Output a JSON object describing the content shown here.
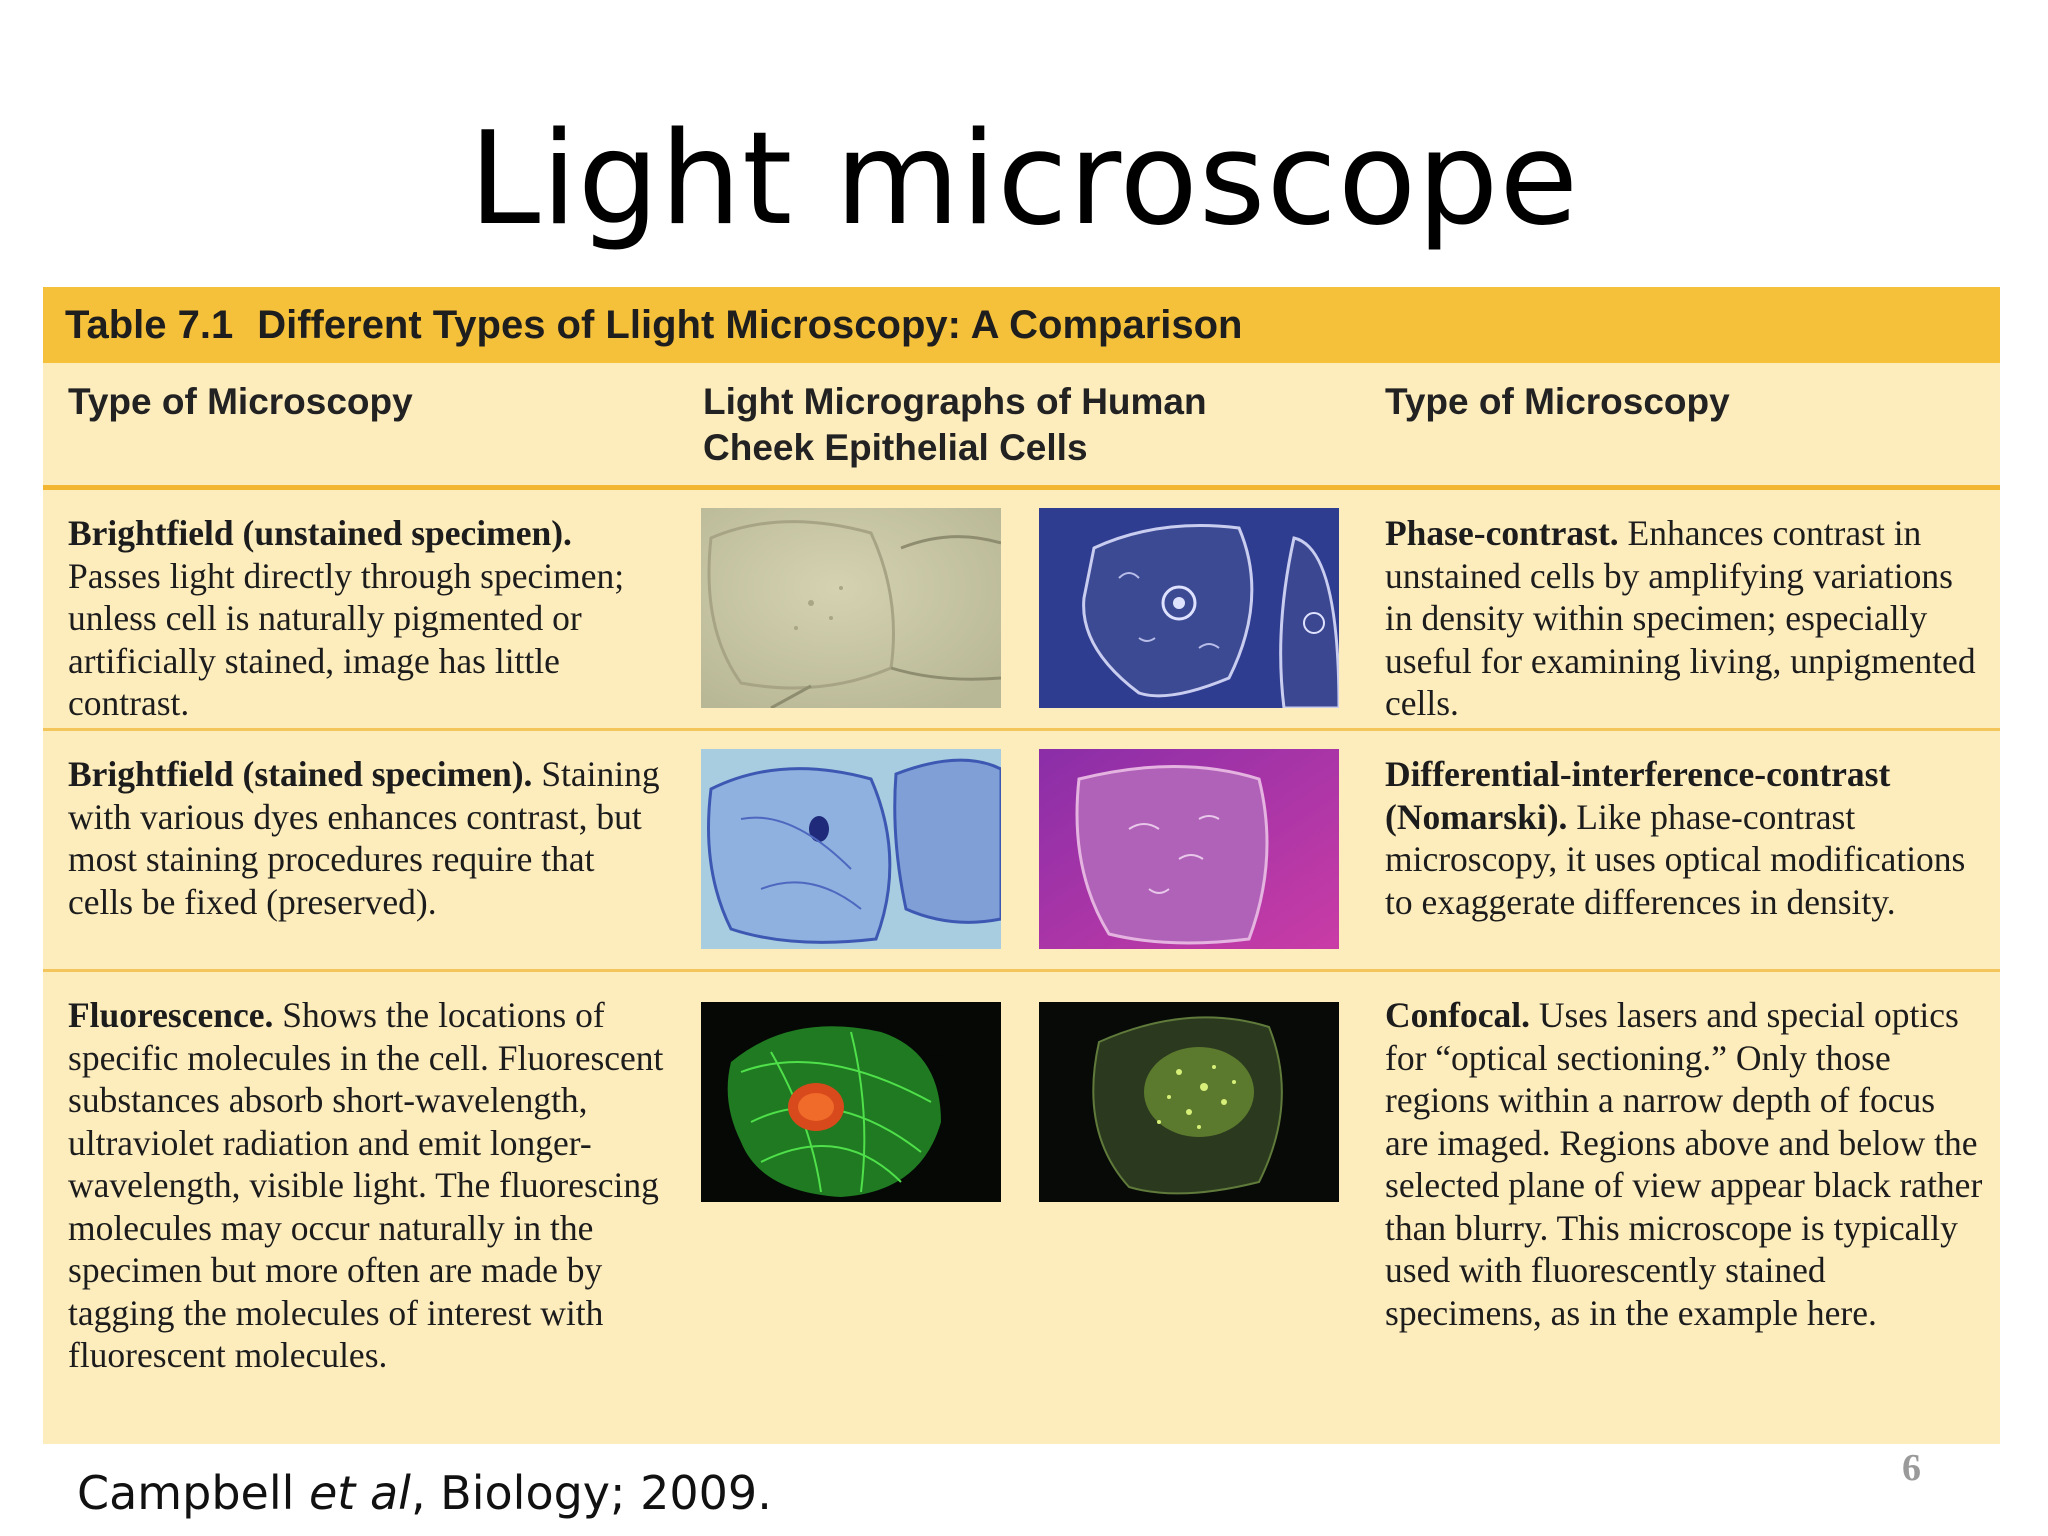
{
  "slide": {
    "title": "Light microscope",
    "credit_author": "Campbell ",
    "credit_etal": "et al",
    "credit_rest": ", Biology; 2009.",
    "page_number": "6"
  },
  "table": {
    "title_number": "Table 7.1",
    "title_text": "Different Types of Llight Microscopy: A Comparison",
    "headers": {
      "left": "Type of Microscopy",
      "middle": "Light Micrographs of Human Cheek Epithelial Cells",
      "right": "Type of Microscopy"
    },
    "rows": [
      {
        "left_lead": "Brightfield (unstained specimen).",
        "left_text": "Passes light directly through specimen; unless cell is naturally pigmented or artificially stained, image has little contrast.",
        "right_lead": "Phase-contrast.",
        "right_text": "Enhances contrast in unstained cells by amplifying variations in density within specimen; especially useful for examining living, unpigmented cells."
      },
      {
        "left_lead": "Brightfield (stained specimen).",
        "left_text": "Staining with various dyes enhances contrast, but most staining procedures require that cells be fixed (preserved).",
        "right_lead": "Differential-interference-contrast (Nomarski).",
        "right_text": "Like phase-contrast microscopy, it uses optical modifications to exaggerate differences in density."
      },
      {
        "left_lead": "Fluorescence.",
        "left_text": "Shows the locations of specific molecules in the cell. Fluorescent substances absorb short-wavelength, ultraviolet radiation and emit longer-wavelength, visible light. The fluorescing molecules may occur naturally in the specimen but more often are made by tagging the molecules of interest with fluorescent molecules.",
        "right_lead": "Confocal.",
        "right_text": "Uses lasers and special optics for “optical sectioning.” Only those regions within a narrow depth of focus are imaged. Regions above and below the selected plane of view appear black rather than blurry. This microscope is typically used with fluorescently stained specimens, as in the example here."
      }
    ]
  },
  "colors": {
    "table_background": "#fdedbd",
    "title_bar": "#f6c13a",
    "rule": "#f3b631",
    "page_number": "#9a9a9a"
  }
}
